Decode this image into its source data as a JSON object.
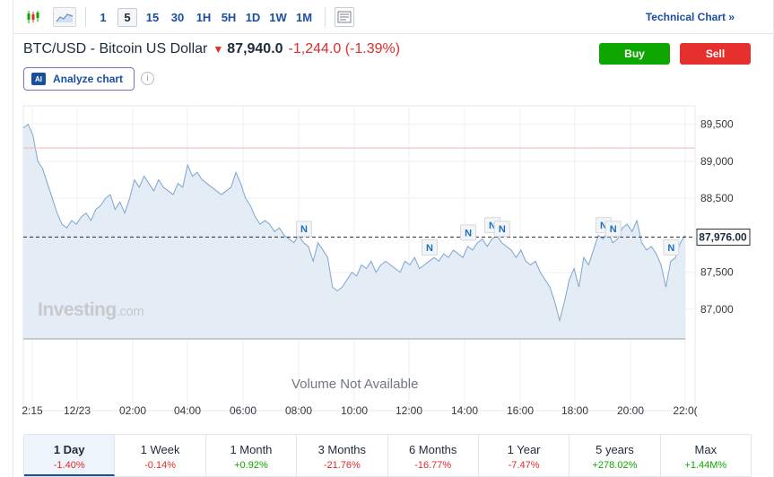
{
  "toolbar": {
    "intervals": [
      "1",
      "5",
      "15",
      "30",
      "1H",
      "5H",
      "1D",
      "1W",
      "1M"
    ],
    "active_interval": "5",
    "technical_link": "Technical Chart »"
  },
  "header": {
    "title": "BTC/USD - Bitcoin US Dollar",
    "price": "87,940.0",
    "change": "-1,244.0 (-1.39%)",
    "buy_label": "Buy",
    "sell_label": "Sell",
    "analyze_label": "Analyze chart",
    "ai_badge": "AI",
    "info_icon": "i"
  },
  "chart_data": {
    "type": "area",
    "ylim": [
      86600,
      89750
    ],
    "yticks": [
      89500,
      89000,
      88500,
      87500,
      87000
    ],
    "ytick_labels": [
      "89,500",
      "89,000",
      "88,500",
      "87,500",
      "87,000"
    ],
    "current_price_label": "87,976.00",
    "current_price": 87976,
    "reference_level": 89180,
    "xtick_labels": [
      "2:15",
      "12/23",
      "02:00",
      "04:00",
      "06:00",
      "08:00",
      "10:00",
      "12:00",
      "14:00",
      "16:00",
      "18:00",
      "20:00",
      "22:0("
    ],
    "series": [
      {
        "values": [
          89450,
          89500,
          89350,
          89000,
          88900,
          88700,
          88500,
          88300,
          88150,
          88100,
          88200,
          88150,
          88250,
          88300,
          88200,
          88350,
          88400,
          88500,
          88550,
          88350,
          88450,
          88300,
          88500,
          88750,
          88650,
          88800,
          88700,
          88600,
          88750,
          88650,
          88600,
          88550,
          88700,
          88650,
          88950,
          88800,
          88850,
          88750,
          88700,
          88650,
          88600,
          88550,
          88600,
          88650,
          88850,
          88700,
          88500,
          88400,
          88250,
          88150,
          88200,
          88150,
          88050,
          88100,
          88000,
          87950,
          87900,
          88000,
          87900,
          87850,
          87650,
          87900,
          87800,
          87700,
          87300,
          87250,
          87300,
          87400,
          87500,
          87450,
          87600,
          87550,
          87650,
          87500,
          87600,
          87650,
          87600,
          87550,
          87500,
          87650,
          87600,
          87700,
          87550,
          87600,
          87650,
          87700,
          87650,
          87750,
          87700,
          87800,
          87750,
          87700,
          87850,
          87800,
          87900,
          87950,
          87850,
          87950,
          88000,
          87900,
          87850,
          87800,
          87700,
          87800,
          87650,
          87600,
          87650,
          87500,
          87400,
          87300,
          87100,
          86850,
          87100,
          87400,
          87550,
          87300,
          87700,
          87600,
          87800,
          88000,
          87950,
          88050,
          87900,
          87950,
          88100,
          88150,
          88050,
          88200,
          87900,
          87800,
          87850,
          87750,
          87600,
          87300,
          87650,
          87700,
          87900,
          88000
        ]
      }
    ],
    "markers": [
      {
        "label": "N",
        "index": 58
      },
      {
        "label": "N",
        "index": 84
      },
      {
        "label": "N",
        "index": 92
      },
      {
        "label": "N",
        "index": 97
      },
      {
        "label": "N",
        "index": 99
      },
      {
        "label": "N",
        "index": 120
      },
      {
        "label": "N",
        "index": 122
      },
      {
        "label": "N",
        "index": 134
      }
    ],
    "volume_label": "Volume Not Available"
  },
  "watermark": {
    "brand": "Investing",
    "suffix": ".com"
  },
  "periods": [
    {
      "label": "1 Day",
      "value": "-1.40%",
      "dir": "neg",
      "active": true
    },
    {
      "label": "1 Week",
      "value": "-0.14%",
      "dir": "neg",
      "active": false
    },
    {
      "label": "1 Month",
      "value": "+0.92%",
      "dir": "pos",
      "active": false
    },
    {
      "label": "3 Months",
      "value": "-21.76%",
      "dir": "neg",
      "active": false
    },
    {
      "label": "6 Months",
      "value": "-16.77%",
      "dir": "neg",
      "active": false
    },
    {
      "label": "1 Year",
      "value": "-7.47%",
      "dir": "neg",
      "active": false
    },
    {
      "label": "5 years",
      "value": "+278.02%",
      "dir": "pos",
      "active": false
    },
    {
      "label": "Max",
      "value": "+1.44M%",
      "dir": "pos",
      "active": false
    }
  ]
}
